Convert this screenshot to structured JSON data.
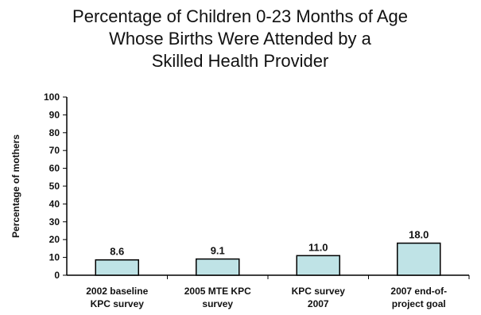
{
  "chart_data": {
    "type": "bar",
    "title_lines": [
      "Percentage of Children 0-23 Months of Age",
      "Whose Births Were Attended by a",
      "Skilled Health Provider"
    ],
    "ylabel": "Percentage of mothers",
    "xlabel": "",
    "categories": [
      [
        "2002 baseline",
        "KPC survey"
      ],
      [
        "2005 MTE KPC",
        "survey"
      ],
      [
        "KPC survey",
        "2007"
      ],
      [
        "2007 end-of-",
        "project goal"
      ]
    ],
    "values": [
      8.6,
      9.1,
      11.0,
      18.0
    ],
    "data_labels": [
      "8.6",
      "9.1",
      "11.0",
      "18.0"
    ],
    "ylim": [
      0,
      100
    ],
    "yticks": [
      "0",
      "10",
      "20",
      "30",
      "40",
      "50",
      "60",
      "70",
      "80",
      "90",
      "100"
    ],
    "grid": false,
    "legend": "none",
    "colors": {
      "bar_fill": "#bfe3e6",
      "bar_stroke": "#000000",
      "axis": "#000000"
    }
  }
}
